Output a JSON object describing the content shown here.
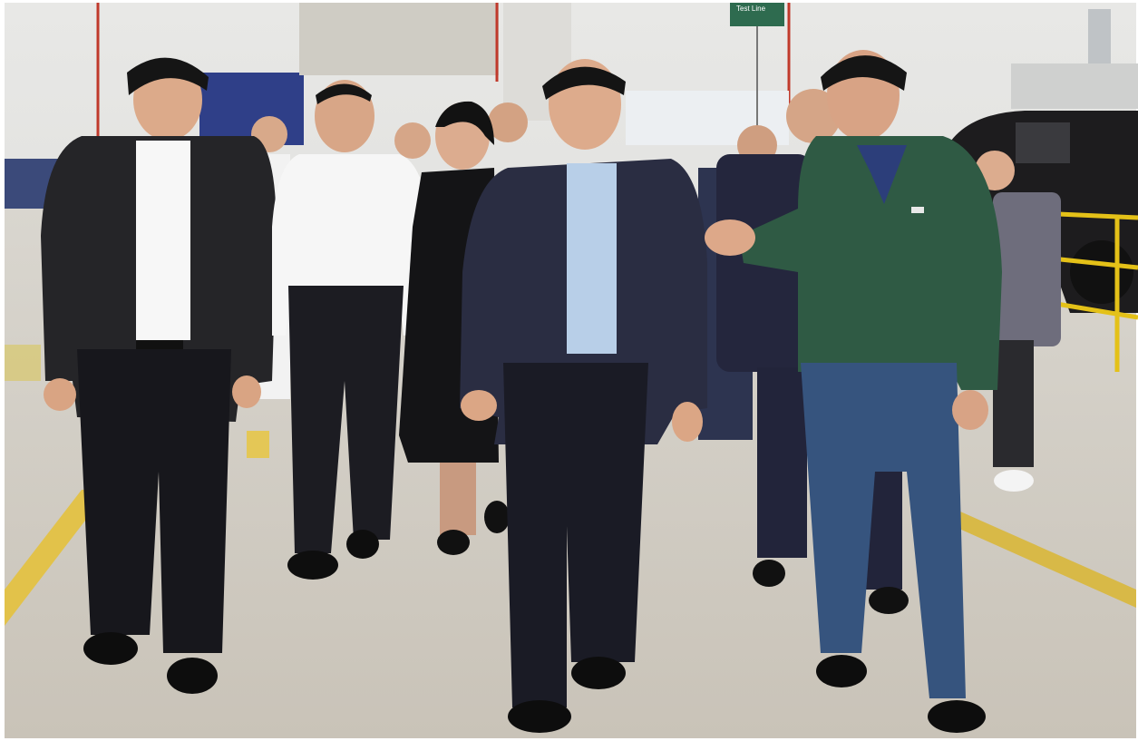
{
  "sign": {
    "text": "Test Line"
  }
}
